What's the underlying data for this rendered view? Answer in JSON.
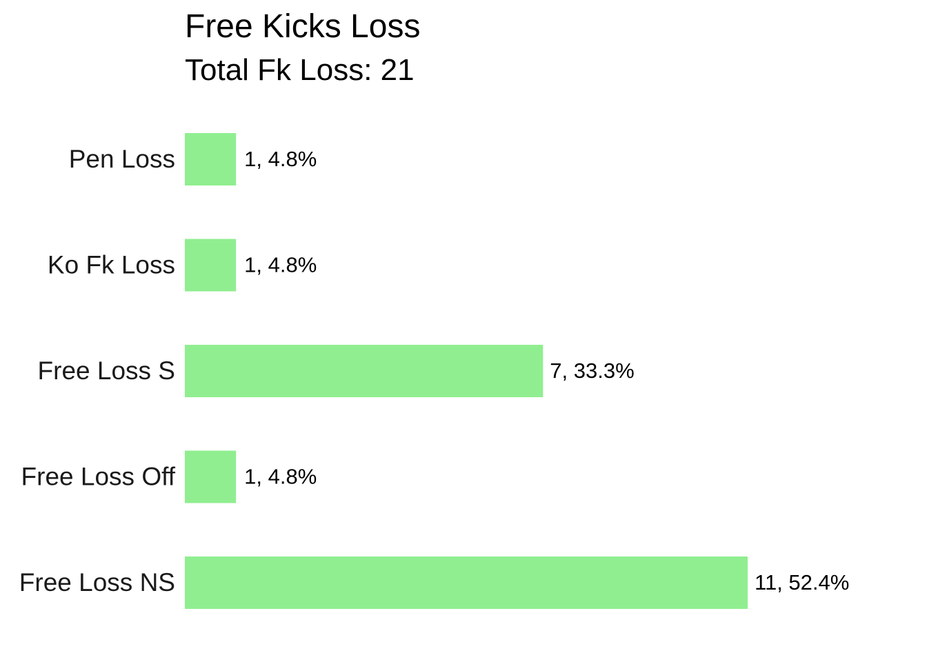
{
  "chart_data": {
    "type": "bar",
    "orientation": "horizontal",
    "title": "Free Kicks Loss",
    "subtitle": "Total Fk Loss: 21",
    "xlabel": "",
    "ylabel": "",
    "categories": [
      "Pen Loss",
      "Ko Fk Loss",
      "Free Loss S",
      "Free Loss Off",
      "Free Loss NS"
    ],
    "values": [
      1,
      1,
      7,
      1,
      11
    ],
    "data_labels": [
      "1, 4.8%",
      "1, 4.8%",
      "7, 33.3%",
      "1, 4.8%",
      "11, 52.4%"
    ],
    "xlim": [
      0,
      11
    ],
    "grid": false,
    "legend": "none",
    "bar_color": "#90EE90"
  }
}
